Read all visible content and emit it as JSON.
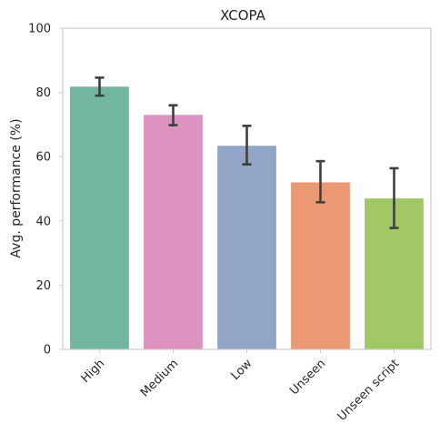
{
  "chart_data": {
    "type": "bar",
    "title": "XCOPA",
    "xlabel": "",
    "ylabel": "Avg. performance (%)",
    "ylim": [
      0,
      100
    ],
    "yticks": [
      0,
      20,
      40,
      60,
      80,
      100
    ],
    "grid": false,
    "categories": [
      "High",
      "Medium",
      "Low",
      "Unseen",
      "Unseen script"
    ],
    "values": [
      81.8,
      73.0,
      63.4,
      52.0,
      47.0
    ],
    "error_low": [
      79.0,
      69.8,
      57.6,
      45.8,
      37.8
    ],
    "error_high": [
      84.6,
      76.0,
      69.6,
      58.6,
      56.4
    ],
    "colors": [
      "#72b6a1",
      "#dc93bf",
      "#93a5c6",
      "#eb9875",
      "#a2c865"
    ],
    "error_color": "#3f3f3f"
  }
}
